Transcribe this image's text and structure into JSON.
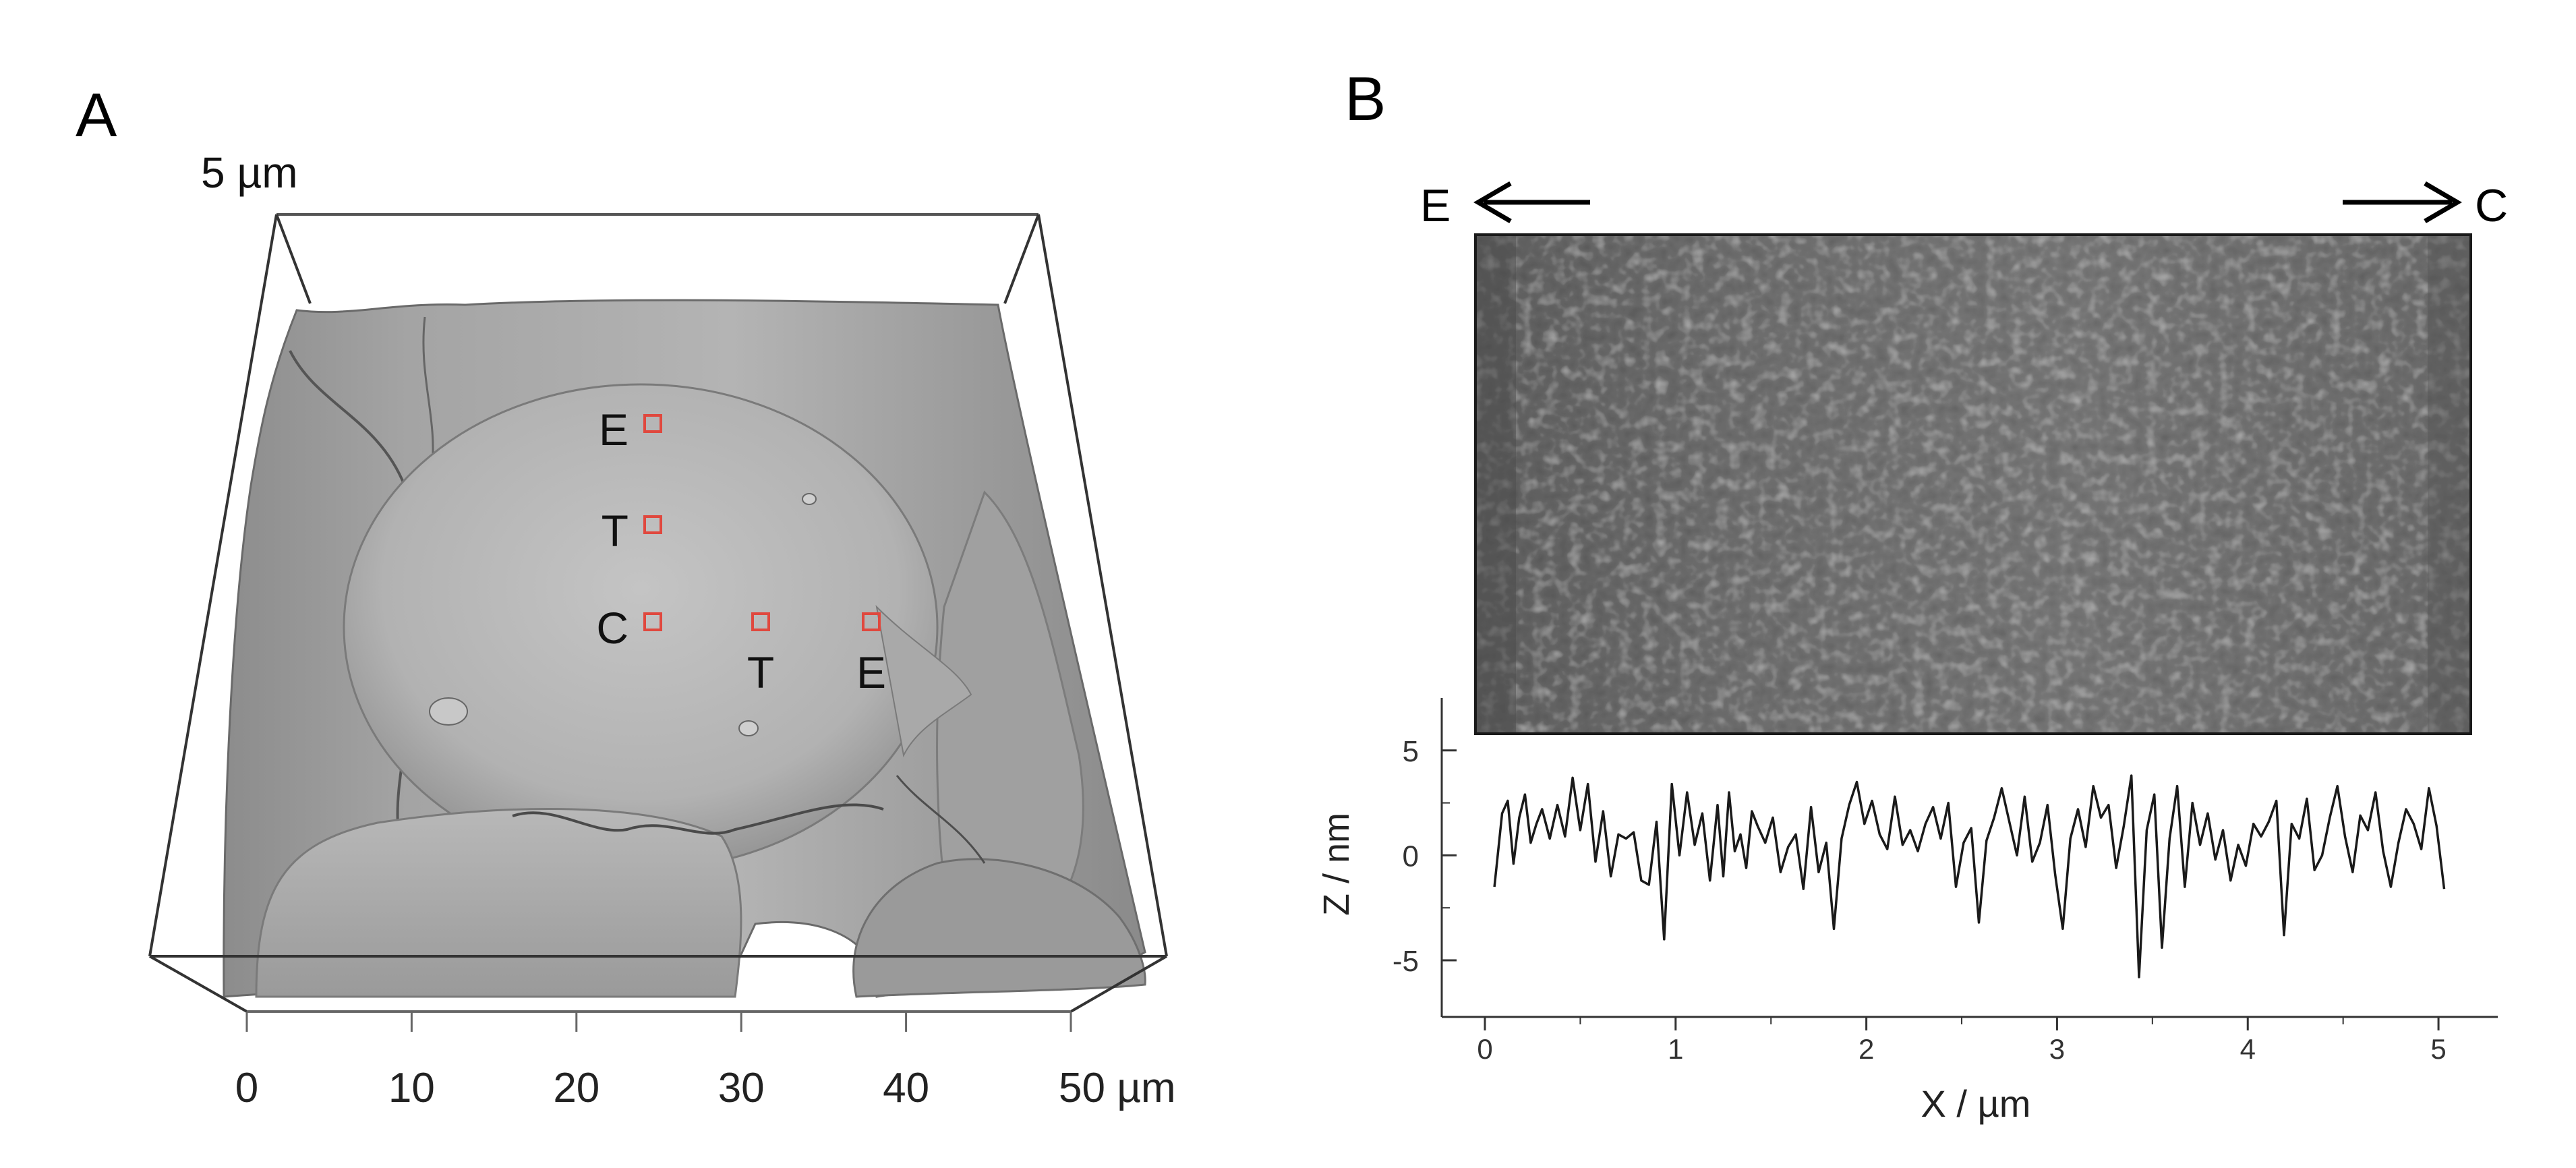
{
  "panel_a": {
    "letter": "A",
    "scale_label": "5 µm",
    "markers": [
      {
        "label": "E"
      },
      {
        "label": "T"
      },
      {
        "label": "C"
      },
      {
        "label": "T"
      },
      {
        "label": "E"
      }
    ],
    "x_ticks": [
      "0",
      "10",
      "20",
      "30",
      "40",
      "50 µm"
    ],
    "marker_color": "#e0483e"
  },
  "panel_b": {
    "letter": "B",
    "arrow_left_label": "E",
    "arrow_right_label": "C",
    "chart_data": {
      "type": "line",
      "xlabel": "X / µm",
      "ylabel": "Z / nm",
      "xlim": [
        0,
        5.12
      ],
      "ylim": [
        -7.7,
        7.5
      ],
      "x_ticks": [
        "0",
        "1",
        "2",
        "3",
        "4",
        "5"
      ],
      "y_ticks": [
        "5",
        "0",
        "-5"
      ],
      "grid": false,
      "x": [
        0.05,
        0.09,
        0.12,
        0.15,
        0.18,
        0.21,
        0.24,
        0.27,
        0.3,
        0.34,
        0.38,
        0.42,
        0.46,
        0.5,
        0.54,
        0.58,
        0.62,
        0.66,
        0.7,
        0.74,
        0.78,
        0.82,
        0.86,
        0.9,
        0.94,
        0.98,
        1.02,
        1.06,
        1.1,
        1.14,
        1.18,
        1.22,
        1.25,
        1.28,
        1.31,
        1.34,
        1.37,
        1.4,
        1.43,
        1.47,
        1.51,
        1.55,
        1.59,
        1.63,
        1.67,
        1.71,
        1.75,
        1.79,
        1.83,
        1.87,
        1.91,
        1.95,
        1.99,
        2.03,
        2.07,
        2.11,
        2.15,
        2.19,
        2.23,
        2.27,
        2.31,
        2.35,
        2.39,
        2.43,
        2.47,
        2.51,
        2.55,
        2.59,
        2.63,
        2.67,
        2.71,
        2.75,
        2.79,
        2.83,
        2.87,
        2.91,
        2.95,
        2.99,
        3.03,
        3.07,
        3.11,
        3.15,
        3.19,
        3.23,
        3.27,
        3.31,
        3.35,
        3.39,
        3.43,
        3.47,
        3.51,
        3.55,
        3.59,
        3.63,
        3.67,
        3.71,
        3.75,
        3.79,
        3.83,
        3.87,
        3.91,
        3.95,
        3.99,
        4.03,
        4.07,
        4.11,
        4.15,
        4.19,
        4.23,
        4.27,
        4.31,
        4.35,
        4.39,
        4.43,
        4.47,
        4.51,
        4.55,
        4.59,
        4.63,
        4.67,
        4.71,
        4.75,
        4.79,
        4.83,
        4.87,
        4.91,
        4.95,
        4.99,
        5.03
      ],
      "values": [
        -1.5,
        2.0,
        2.6,
        -0.4,
        1.8,
        2.9,
        0.6,
        1.5,
        2.2,
        0.8,
        2.4,
        0.9,
        3.7,
        1.2,
        3.4,
        -0.3,
        2.1,
        -1.0,
        1.0,
        0.8,
        1.1,
        -1.2,
        -1.4,
        1.6,
        -4.0,
        3.4,
        0.0,
        3.0,
        0.5,
        2.0,
        -1.2,
        2.4,
        -1.0,
        3.0,
        0.2,
        1.0,
        -0.6,
        2.1,
        1.4,
        0.6,
        1.8,
        -0.8,
        0.4,
        1.0,
        -1.6,
        2.3,
        -0.8,
        0.6,
        -3.5,
        0.8,
        2.4,
        3.5,
        1.5,
        2.6,
        1.0,
        0.3,
        2.8,
        0.5,
        1.2,
        0.2,
        1.5,
        2.3,
        0.8,
        2.5,
        -1.5,
        0.6,
        1.3,
        -3.2,
        0.7,
        1.8,
        3.2,
        1.6,
        0.0,
        2.8,
        -0.3,
        0.6,
        2.4,
        -0.9,
        -3.5,
        0.8,
        2.2,
        0.4,
        3.3,
        1.8,
        2.4,
        -0.6,
        1.4,
        3.8,
        -5.8,
        1.2,
        2.9,
        -4.4,
        0.8,
        3.3,
        -1.5,
        2.5,
        0.5,
        2.0,
        -0.2,
        1.2,
        -1.2,
        0.5,
        -0.5,
        1.5,
        0.9,
        1.6,
        2.6,
        -3.8,
        1.5,
        0.8,
        2.7,
        -0.7,
        0.0,
        1.8,
        3.3,
        0.9,
        -0.8,
        1.9,
        1.2,
        3.0,
        0.2,
        -1.5,
        0.6,
        2.2,
        1.5,
        0.3,
        3.2,
        1.4,
        -1.6
      ]
    }
  }
}
